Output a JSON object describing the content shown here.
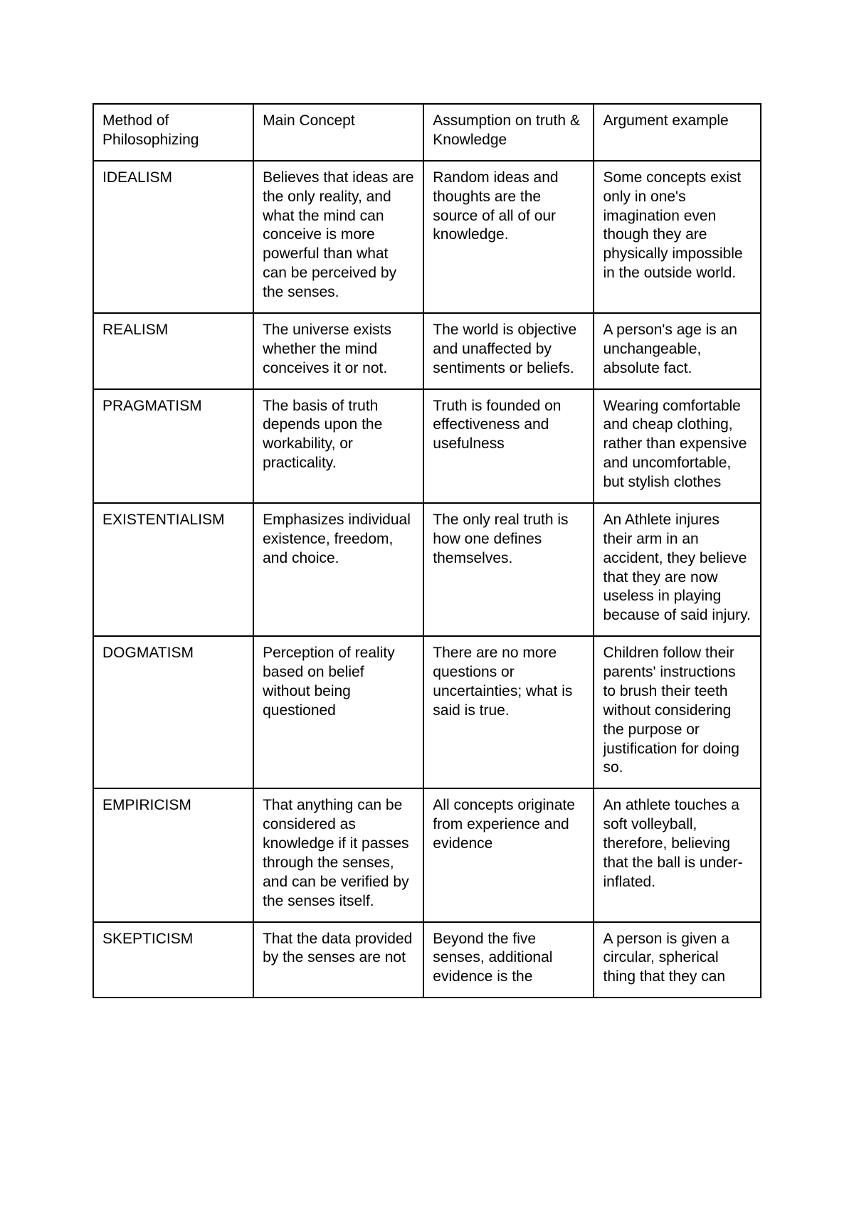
{
  "table": {
    "border_color": "#000000",
    "background_color": "#ffffff",
    "text_color": "#000000",
    "font_size_pt": 16,
    "columns": [
      "Method of Philosophizing",
      "Main Concept",
      "Assumption on truth & Knowledge",
      "Argument example"
    ],
    "rows": [
      {
        "method": "IDEALISM",
        "concept": "Believes that ideas are the only reality, and what the mind can conceive is more powerful than what can be perceived by the senses.",
        "assumption": "Random ideas and thoughts are the source of all of our knowledge.",
        "example": "Some concepts exist only in one's imagination even though they are physically impossible in the outside world."
      },
      {
        "method": "REALISM",
        "concept": "The universe exists whether the mind conceives it or not.",
        "assumption": "The world is objective and unaffected by sentiments or beliefs.",
        "example": "A person's age is an unchangeable, absolute fact."
      },
      {
        "method": "PRAGMATISM",
        "concept": "The basis of truth depends upon the workability, or practicality.",
        "assumption": "Truth is founded on effectiveness and usefulness",
        "example": "Wearing comfortable and cheap clothing, rather than expensive and uncomfortable, but stylish clothes"
      },
      {
        "method": "EXISTENTIALISM",
        "concept": "Emphasizes individual existence, freedom, and choice.",
        "assumption": "The only real truth is how one defines themselves.",
        "example": "An Athlete injures their arm in an accident, they believe that they are now useless in playing because of said injury."
      },
      {
        "method": "DOGMATISM",
        "concept": "Perception of reality based on belief without being questioned",
        "assumption": "There are no more questions or uncertainties; what is said is true.",
        "example": "Children follow their parents' instructions to brush their teeth without considering the purpose or justification for doing so."
      },
      {
        "method": "EMPIRICISM",
        "concept": "That anything can be considered as knowledge if it passes through the senses, and can be verified by the senses itself.",
        "assumption": "All concepts originate from experience and evidence",
        "example": "An athlete touches a soft volleyball, therefore, believing that the ball is under-inflated."
      },
      {
        "method": "SKEPTICISM",
        "concept": "That the data provided by the senses are not",
        "assumption": "Beyond the five senses, additional evidence is the",
        "example": "A person is given a circular, spherical thing that they can"
      }
    ]
  }
}
